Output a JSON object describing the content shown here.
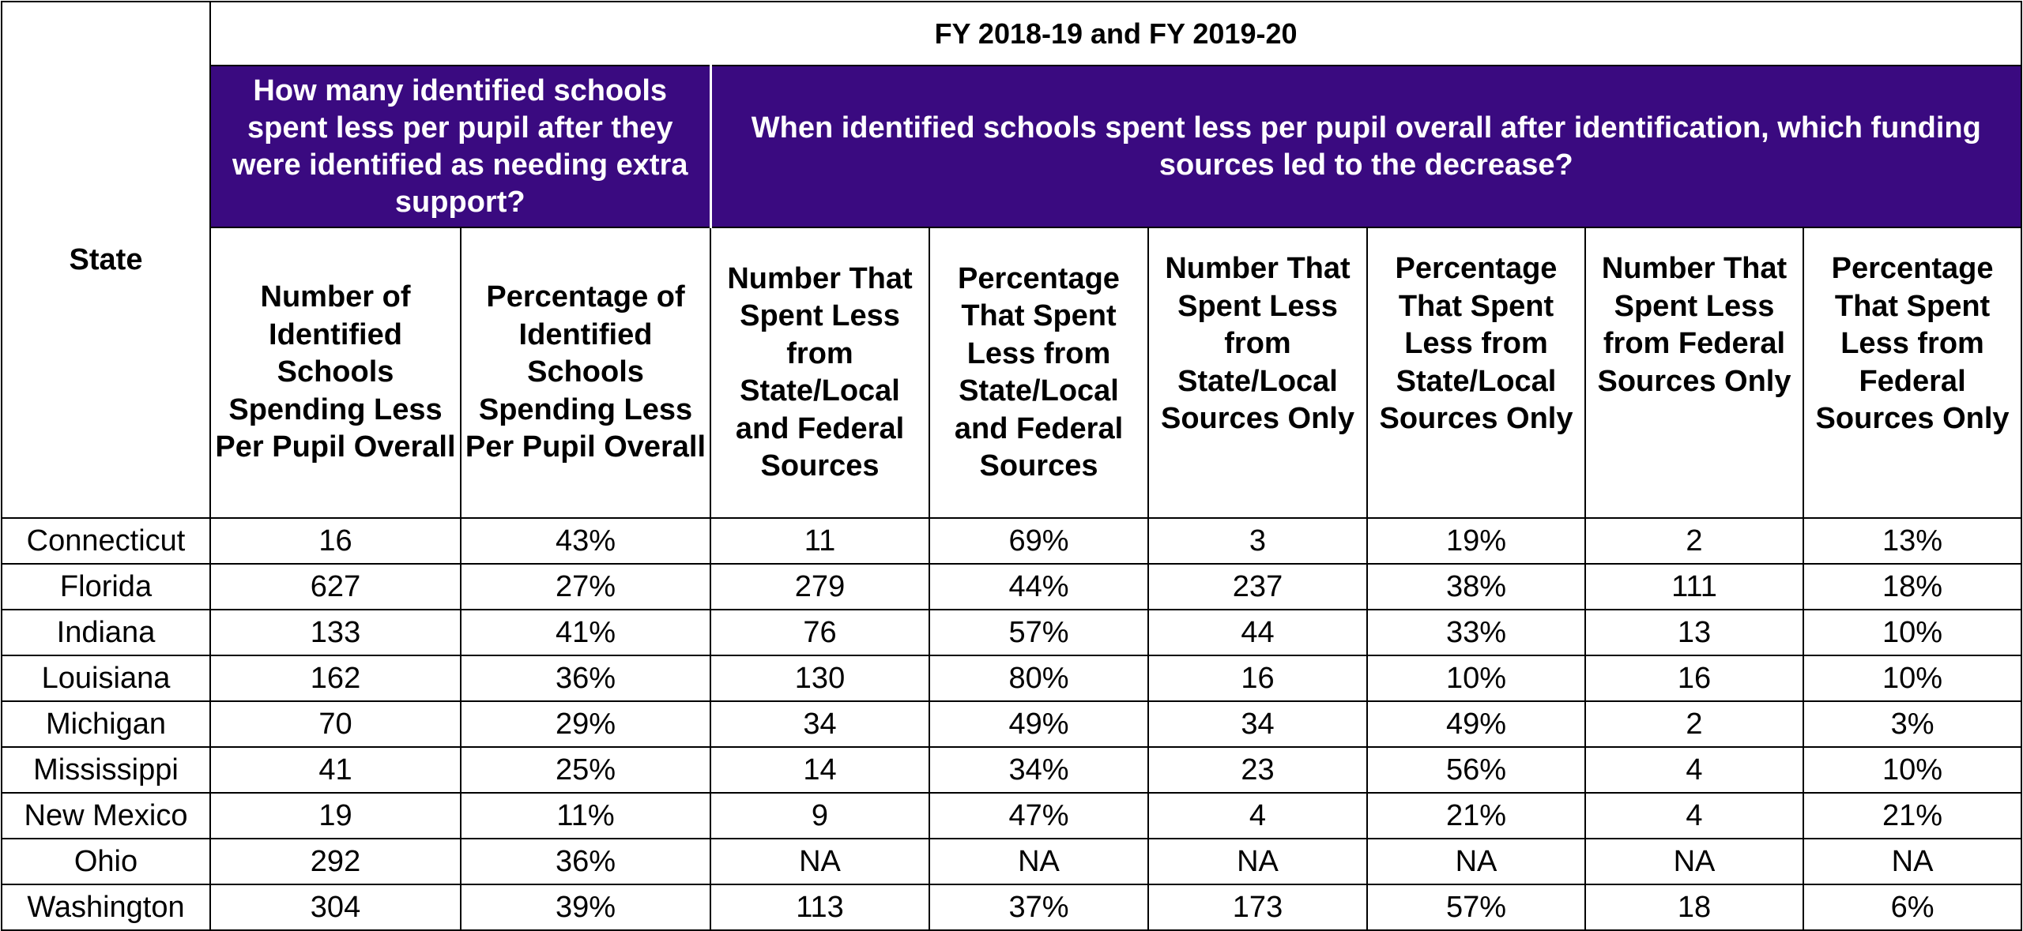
{
  "table": {
    "title": "FY 2018-19 and FY 2019-20",
    "state_header": "State",
    "group_headers": [
      "How many identified schools spent less per pupil after they were identified as needing extra support?",
      "When identified schools spent less per pupil overall after identification, which funding sources led to the decrease?"
    ],
    "columns": [
      "Number of Identified Schools Spending Less Per Pupil Overall",
      "Percentage of Identified Schools Spending Less Per Pupil Overall",
      "Number That Spent Less from State/Local and Federal Sources",
      "Percentage That Spent Less from State/Local and Federal Sources",
      "Number That Spent Less from State/Local Sources Only",
      "Percentage That Spent Less from State/Local Sources Only",
      "Number That Spent Less from Federal Sources Only",
      "Percentage That Spent Less from Federal Sources Only"
    ],
    "rows": [
      [
        "Connecticut",
        "16",
        "43%",
        "11",
        "69%",
        "3",
        "19%",
        "2",
        "13%"
      ],
      [
        "Florida",
        "627",
        "27%",
        "279",
        "44%",
        "237",
        "38%",
        "111",
        "18%"
      ],
      [
        "Indiana",
        "133",
        "41%",
        "76",
        "57%",
        "44",
        "33%",
        "13",
        "10%"
      ],
      [
        "Louisiana",
        "162",
        "36%",
        "130",
        "80%",
        "16",
        "10%",
        "16",
        "10%"
      ],
      [
        "Michigan",
        "70",
        "29%",
        "34",
        "49%",
        "34",
        "49%",
        "2",
        "3%"
      ],
      [
        "Mississippi",
        "41",
        "25%",
        "14",
        "34%",
        "23",
        "56%",
        "4",
        "10%"
      ],
      [
        "New Mexico",
        "19",
        "11%",
        "9",
        "47%",
        "4",
        "21%",
        "4",
        "21%"
      ],
      [
        "Ohio",
        "292",
        "36%",
        "NA",
        "NA",
        "NA",
        "NA",
        "NA",
        "NA"
      ],
      [
        "Washington",
        "304",
        "39%",
        "113",
        "37%",
        "173",
        "57%",
        "18",
        "6%"
      ]
    ]
  },
  "colors": {
    "header_purple": "#3a0a80",
    "header_text": "#ffffff",
    "border": "#000000"
  }
}
